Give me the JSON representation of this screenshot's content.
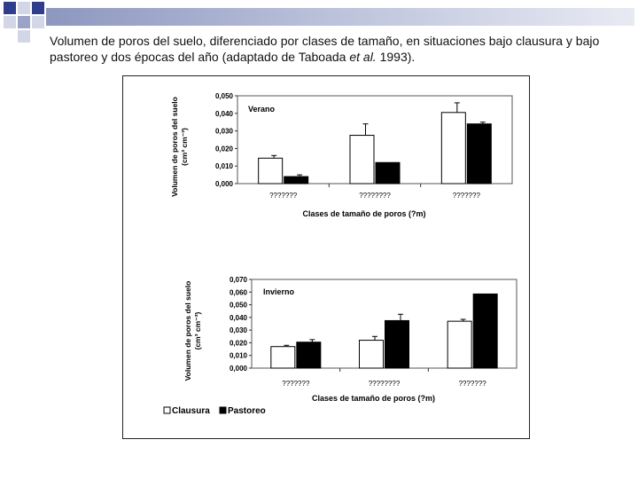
{
  "slide": {
    "caption_main": "Volumen de poros del suelo, diferenciado por clases de tamaño, en situaciones bajo clausura y bajo pastoreo y dos épocas del año (adaptado de Taboada ",
    "caption_italic": "et al.",
    "caption_tail": " 1993).",
    "colors": {
      "deco_dark": "#2f3e8c",
      "deco_mid": "#9aa3c6",
      "deco_light": "#d2d6e6",
      "bar_open": "#ffffff",
      "bar_filled": "#000000"
    }
  },
  "legend": {
    "clausura": "Clausura",
    "pastoreo": "Pastoreo"
  },
  "chart_data": [
    {
      "type": "bar",
      "panel": "Verano",
      "categories": [
        "???????",
        "????????",
        "???????"
      ],
      "series": [
        {
          "name": "Clausura",
          "values": [
            0.0145,
            0.0275,
            0.0405
          ],
          "error": [
            0.0015,
            0.0065,
            0.0055
          ]
        },
        {
          "name": "Pastoreo",
          "values": [
            0.004,
            0.012,
            0.034
          ],
          "error": [
            0.001,
            0.0,
            0.001
          ]
        }
      ],
      "ylim": [
        0,
        0.05
      ],
      "yticks": [
        "0,000",
        "0,010",
        "0,020",
        "0,030",
        "0,040",
        "0,050"
      ],
      "ylabel_line1": "Volumen de poros del suelo",
      "ylabel_line2": "(cm³ cm⁻³)",
      "xlabel": "Clases de tamaño de poros (?m)"
    },
    {
      "type": "bar",
      "panel": "Invierno",
      "categories": [
        "???????",
        "????????",
        "???????"
      ],
      "series": [
        {
          "name": "Clausura",
          "values": [
            0.017,
            0.022,
            0.037
          ],
          "error": [
            0.001,
            0.003,
            0.0015
          ]
        },
        {
          "name": "Pastoreo",
          "values": [
            0.0205,
            0.0375,
            0.0585
          ],
          "error": [
            0.002,
            0.005,
            0.0
          ]
        }
      ],
      "ylim": [
        0,
        0.07
      ],
      "yticks": [
        "0,000",
        "0,010",
        "0,020",
        "0,030",
        "0,040",
        "0,050",
        "0,060",
        "0,070"
      ],
      "ylabel_line1": "Volumen de poros del suelo",
      "ylabel_line2": "(cm³ cm⁻³)",
      "xlabel": "Clases de tamaño de poros (?m)"
    }
  ]
}
